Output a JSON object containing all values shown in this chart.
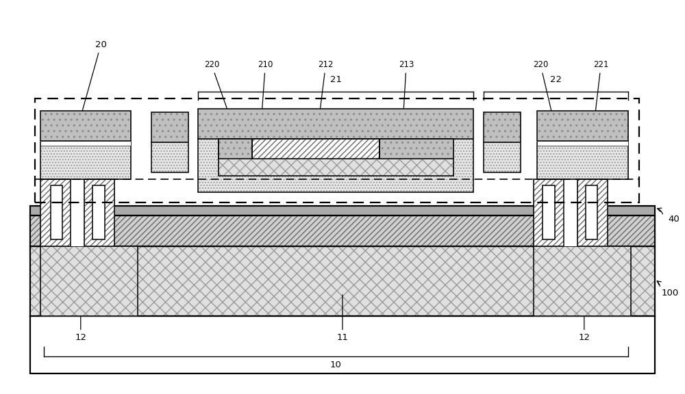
{
  "bg": "#ffffff",
  "lc": "#000000",
  "figsize": [
    10.0,
    5.76
  ],
  "dpi": 100,
  "xlim": [
    0,
    100
  ],
  "ylim": [
    0,
    57.6
  ]
}
